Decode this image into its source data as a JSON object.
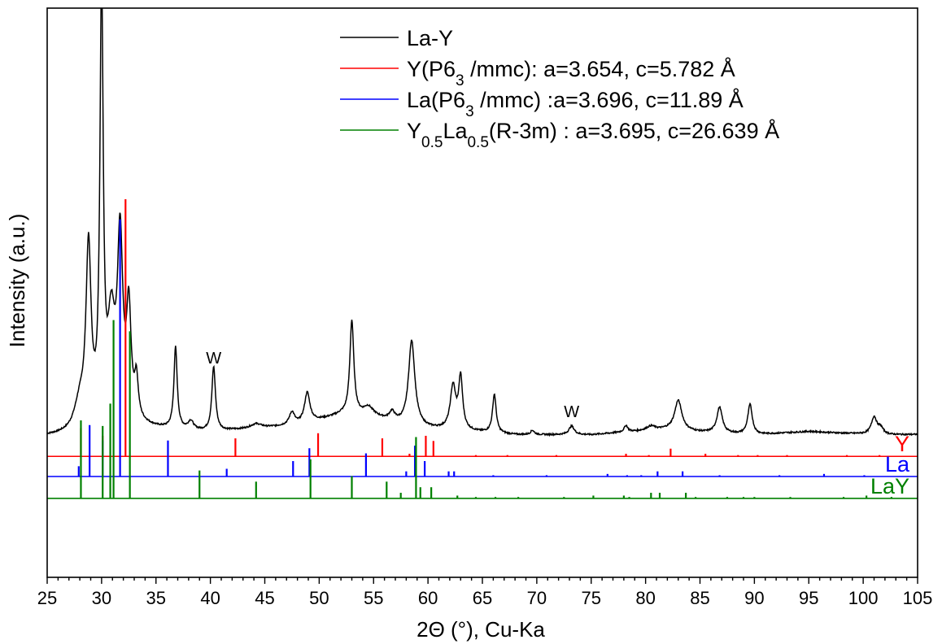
{
  "chart_data": {
    "type": "line",
    "xlabel": "2Θ (°), Cu-Ka",
    "ylabel": "Intensity (a.u.)",
    "xlim": [
      25,
      105
    ],
    "xticks": [
      25,
      30,
      35,
      40,
      45,
      50,
      55,
      60,
      65,
      70,
      75,
      80,
      85,
      90,
      95,
      100,
      105
    ],
    "y_ticks_shown": false,
    "grid": false,
    "legend_position": "top-right",
    "legend": [
      {
        "color": "#000000",
        "parts": [
          {
            "t": "La-Y"
          }
        ]
      },
      {
        "color": "#ff0000",
        "parts": [
          {
            "t": "Y(P6"
          },
          {
            "t": "3",
            "sub": true
          },
          {
            "t": " /mmc): a=3.654,  c=5.782 Å"
          }
        ]
      },
      {
        "color": "#0000ff",
        "parts": [
          {
            "t": "La(P6"
          },
          {
            "t": "3",
            "sub": true
          },
          {
            "t": " /mmc) :a=3.696,  c=11.89  Å"
          }
        ]
      },
      {
        "color": "#008000",
        "parts": [
          {
            "t": "Y"
          },
          {
            "t": "0.5",
            "sub": true
          },
          {
            "t": "La"
          },
          {
            "t": "0.5",
            "sub": true
          },
          {
            "t": "(R-3m) :  a=3.695,  c=26.639 Å"
          }
        ]
      }
    ],
    "annotations": [
      {
        "text": "W",
        "x": 40.3
      },
      {
        "text": "W",
        "x": 73.2
      }
    ],
    "series": [
      {
        "name": "La-Y",
        "color": "#000000",
        "kind": "profile",
        "baseline": 0,
        "scale": 1,
        "background": [
          [
            25,
            0
          ],
          [
            27,
            0.1
          ],
          [
            28,
            0.4
          ],
          [
            30,
            1.5
          ],
          [
            33,
            2.0
          ],
          [
            36,
            1.5
          ],
          [
            40,
            1.0
          ],
          [
            45,
            2.0
          ],
          [
            48,
            2.6
          ],
          [
            52,
            5.0
          ],
          [
            55,
            4.6
          ],
          [
            58,
            2.4
          ],
          [
            60,
            1.8
          ],
          [
            63,
            1.3
          ],
          [
            68,
            0.4
          ],
          [
            75,
            0.4
          ],
          [
            78,
            1.0
          ],
          [
            82,
            1.6
          ],
          [
            85,
            1.0
          ],
          [
            90,
            0.4
          ],
          [
            95,
            1.2
          ],
          [
            98,
            0.8
          ],
          [
            102,
            0.4
          ],
          [
            105,
            0.5
          ]
        ],
        "peaks": [
          {
            "x": 28.0,
            "h": 6,
            "w": 0.6
          },
          {
            "x": 28.8,
            "h": 41,
            "w": 0.28
          },
          {
            "x": 30.0,
            "h": 100,
            "w": 0.18
          },
          {
            "x": 30.9,
            "h": 22,
            "w": 0.4
          },
          {
            "x": 31.7,
            "h": 42,
            "w": 0.3
          },
          {
            "x": 32.5,
            "h": 25,
            "w": 0.25
          },
          {
            "x": 33.2,
            "h": 9,
            "w": 0.2
          },
          {
            "x": 36.8,
            "h": 19,
            "w": 0.18
          },
          {
            "x": 38.2,
            "h": 2,
            "w": 0.3
          },
          {
            "x": 40.3,
            "h": 15,
            "w": 0.2
          },
          {
            "x": 44.2,
            "h": 1,
            "w": 0.6
          },
          {
            "x": 47.5,
            "h": 3,
            "w": 0.3
          },
          {
            "x": 48.9,
            "h": 7,
            "w": 0.3
          },
          {
            "x": 53.0,
            "h": 22,
            "w": 0.22
          },
          {
            "x": 54.5,
            "h": 2,
            "w": 0.5
          },
          {
            "x": 56.7,
            "h": 2,
            "w": 0.3
          },
          {
            "x": 58.5,
            "h": 20,
            "w": 0.35
          },
          {
            "x": 62.3,
            "h": 10,
            "w": 0.3
          },
          {
            "x": 63.0,
            "h": 12,
            "w": 0.22
          },
          {
            "x": 66.1,
            "h": 9,
            "w": 0.2
          },
          {
            "x": 69.6,
            "h": 1,
            "w": 0.2
          },
          {
            "x": 73.2,
            "h": 2,
            "w": 0.3
          },
          {
            "x": 78.2,
            "h": 1.5,
            "w": 0.2
          },
          {
            "x": 80.5,
            "h": 1,
            "w": 0.5
          },
          {
            "x": 83.0,
            "h": 7,
            "w": 0.4
          },
          {
            "x": 86.8,
            "h": 6,
            "w": 0.3
          },
          {
            "x": 89.6,
            "h": 7,
            "w": 0.25
          },
          {
            "x": 101.0,
            "h": 4,
            "w": 0.3
          },
          {
            "x": 101.6,
            "h": 1.5,
            "w": 0.3
          }
        ]
      },
      {
        "name": "Y",
        "label": "Y",
        "color": "#ff0000",
        "kind": "sticks",
        "baseline": -4.6,
        "scale": 0.6,
        "sticks": [
          [
            28.1,
            11
          ],
          [
            30.1,
            8
          ],
          [
            32.2,
            100
          ],
          [
            42.3,
            7
          ],
          [
            49.9,
            9
          ],
          [
            55.8,
            7
          ],
          [
            58.3,
            1
          ],
          [
            59.8,
            8
          ],
          [
            60.5,
            6
          ],
          [
            64.4,
            0.5
          ],
          [
            67.3,
            0.5
          ],
          [
            71.8,
            0.5
          ],
          [
            78.2,
            1
          ],
          [
            80.3,
            0.5
          ],
          [
            82.3,
            3
          ],
          [
            85.5,
            1
          ],
          [
            88.5,
            0.5
          ],
          [
            90.3,
            0.5
          ],
          [
            93.0,
            0.5
          ],
          [
            98.5,
            0.5
          ],
          [
            101.5,
            0.5
          ]
        ]
      },
      {
        "name": "La",
        "label": "La",
        "color": "#0000ff",
        "kind": "sticks",
        "baseline": -9.3,
        "scale": 0.6,
        "sticks": [
          [
            27.9,
            4
          ],
          [
            28.9,
            20
          ],
          [
            30.1,
            14
          ],
          [
            31.7,
            100
          ],
          [
            36.1,
            14
          ],
          [
            41.5,
            3
          ],
          [
            47.6,
            6
          ],
          [
            49.1,
            11
          ],
          [
            54.3,
            9
          ],
          [
            58.0,
            2
          ],
          [
            58.8,
            12
          ],
          [
            59.7,
            6
          ],
          [
            61.9,
            2
          ],
          [
            62.4,
            2
          ],
          [
            66.0,
            0.5
          ],
          [
            70.9,
            0.5
          ],
          [
            76.5,
            1
          ],
          [
            78.3,
            0.5
          ],
          [
            79.6,
            0.5
          ],
          [
            81.1,
            2
          ],
          [
            83.4,
            2
          ],
          [
            86.8,
            0.5
          ],
          [
            92.3,
            0.5
          ],
          [
            96.4,
            1
          ],
          [
            100.1,
            0.5
          ]
        ]
      },
      {
        "name": "LaY",
        "label": "LaY",
        "color": "#008000",
        "kind": "sticks",
        "baseline": -14.4,
        "scale": 0.65,
        "sticks": [
          [
            28.1,
            28
          ],
          [
            30.1,
            26
          ],
          [
            30.8,
            34
          ],
          [
            31.1,
            64
          ],
          [
            32.6,
            60
          ],
          [
            39.0,
            10
          ],
          [
            44.2,
            6
          ],
          [
            49.2,
            14
          ],
          [
            53.0,
            8
          ],
          [
            56.2,
            6
          ],
          [
            57.5,
            2
          ],
          [
            58.9,
            22
          ],
          [
            59.3,
            4
          ],
          [
            60.3,
            4
          ],
          [
            62.7,
            1
          ],
          [
            64.4,
            0.5
          ],
          [
            66.2,
            0.5
          ],
          [
            68.3,
            0.5
          ],
          [
            72.5,
            0.5
          ],
          [
            75.2,
            1
          ],
          [
            78.0,
            1
          ],
          [
            78.5,
            0.5
          ],
          [
            80.5,
            2
          ],
          [
            81.3,
            2
          ],
          [
            83.7,
            2
          ],
          [
            84.6,
            0.5
          ],
          [
            87.5,
            0.5
          ],
          [
            89.0,
            0.5
          ],
          [
            90.0,
            0.5
          ],
          [
            93.3,
            0.5
          ],
          [
            98.2,
            0.5
          ],
          [
            100.3,
            1
          ],
          [
            102.6,
            0.5
          ]
        ]
      }
    ]
  }
}
